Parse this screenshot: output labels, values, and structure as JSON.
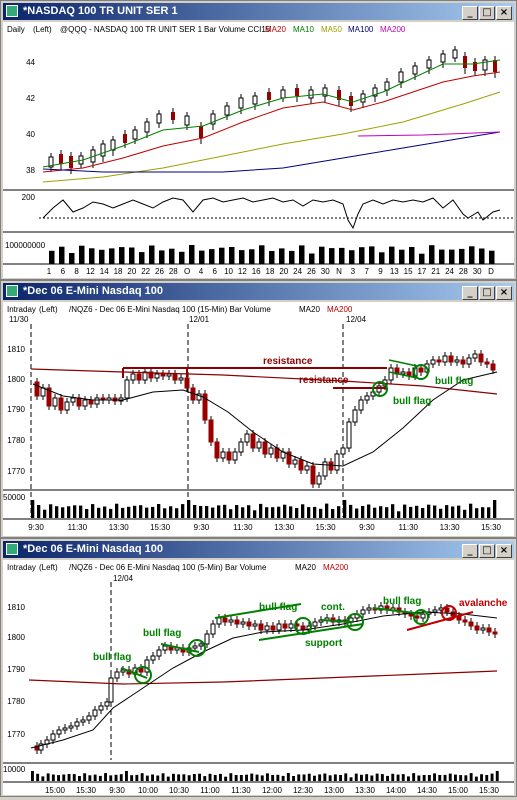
{
  "windows": [
    {
      "title": "*NASDAQ 100 TR UNIT SER 1",
      "header": {
        "interval": "Daily",
        "axis": "(Left)",
        "desc": "@QQQ - NASDAQ 100 TR UNIT SER 1",
        "types": "Bar  Volume  CCI15",
        "mas": [
          {
            "label": "MA20",
            "color": "#c00000"
          },
          {
            "label": "MA10",
            "color": "#008000"
          },
          {
            "label": "MA50",
            "color": "#a0a000"
          },
          {
            "label": "MA100",
            "color": "#000080"
          },
          {
            "label": "MA200",
            "color": "#c000c0"
          }
        ]
      },
      "y_labels": [
        "44",
        "42",
        "40",
        "38"
      ],
      "cci_label": "200",
      "volume_label": "100000000",
      "x_labels": [
        "1",
        "6",
        "8",
        "12",
        "14",
        "18",
        "20",
        "22",
        "26",
        "28",
        "O",
        "4",
        "6",
        "10",
        "12",
        "16",
        "18",
        "20",
        "24",
        "26",
        "30",
        "N",
        "3",
        "7",
        "9",
        "13",
        "15",
        "17",
        "21",
        "24",
        "28",
        "30",
        "D"
      ]
    },
    {
      "title": "*Dec 06  E-Mini Nasdaq 100",
      "header": {
        "interval": "Intraday",
        "axis": "(Left)",
        "desc": "/NQZ6 - Dec 06  E-Mini Nasdaq 100 (15-Min)  Bar  Volume",
        "mas": [
          {
            "label": "MA20",
            "color": "#000000"
          },
          {
            "label": "MA200",
            "color": "#c00000"
          }
        ]
      },
      "date_labels": [
        "11/30",
        "12/01",
        "12/04"
      ],
      "y_labels": [
        "1810",
        "1800",
        "1790",
        "1780",
        "1770"
      ],
      "volume_label": "50000",
      "annotations": [
        "resistance",
        "resistance",
        "bull flag",
        "bull flag"
      ],
      "x_labels": [
        "9:30",
        "11:30",
        "13:30",
        "15:30",
        "9:30",
        "11:30",
        "13:30",
        "15:30",
        "9:30",
        "11:30",
        "13:30",
        "15:30"
      ]
    },
    {
      "title": "*Dec 06  E-Mini Nasdaq 100",
      "header": {
        "interval": "Intraday",
        "axis": "(Left)",
        "desc": "/NQZ6 - Dec 06  E-Mini Nasdaq 100 (5-Min)  Bar  Volume",
        "mas": [
          {
            "label": "MA20",
            "color": "#000000"
          },
          {
            "label": "MA200",
            "color": "#c00000"
          }
        ]
      },
      "date_labels": [
        "12/04"
      ],
      "y_labels": [
        "1810",
        "1800",
        "1790",
        "1780",
        "1770"
      ],
      "volume_label": "10000",
      "annotations": [
        "bull flag",
        "bull flag",
        "bull flag",
        "cont.",
        "bull flag",
        "support",
        "avalanche"
      ],
      "x_labels": [
        "15:00",
        "15:30",
        "9:30",
        "10:00",
        "10:30",
        "11:00",
        "11:30",
        "12:00",
        "12:30",
        "13:00",
        "13:30",
        "14:00",
        "14:30",
        "15:00",
        "15:30"
      ]
    }
  ]
}
